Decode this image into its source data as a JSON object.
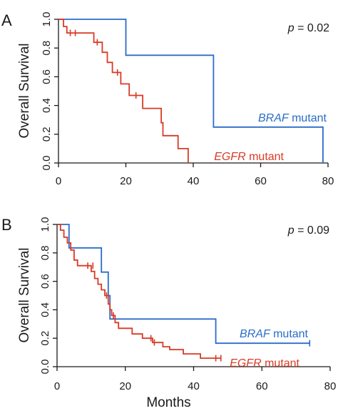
{
  "colors": {
    "braf": "#2a6dc8",
    "egfr": "#d93a26",
    "axis": "#1a1a1a"
  },
  "chart_data": [
    {
      "type": "line",
      "panel": "A",
      "p_value": {
        "italic": "p",
        "rest": " = 0.02"
      },
      "xlabel": "",
      "ylabel": "Overall Survival",
      "xlim": [
        0,
        80
      ],
      "ylim": [
        0,
        1
      ],
      "x_ticks": [
        "0",
        "20",
        "40",
        "60",
        "80"
      ],
      "y_ticks": [
        "0.0",
        "0.2",
        "0.4",
        "0.6",
        "0.8",
        "1.0"
      ],
      "series": [
        {
          "key": "braf",
          "italic": "BRAF",
          "rest": " mutant",
          "steps": [
            [
              0,
              1.0
            ],
            [
              20,
              1.0
            ],
            [
              20,
              0.75
            ],
            [
              46,
              0.75
            ],
            [
              46,
              0.25
            ],
            [
              78.5,
              0.25
            ],
            [
              78.5,
              0.0
            ]
          ],
          "censors": []
        },
        {
          "key": "egfr",
          "italic": "EGFR",
          "rest": " mutant",
          "steps": [
            [
              0,
              1.0
            ],
            [
              1.5,
              1.0
            ],
            [
              1.5,
              0.95
            ],
            [
              2.5,
              0.95
            ],
            [
              2.5,
              0.905
            ],
            [
              10.5,
              0.905
            ],
            [
              10.5,
              0.84
            ],
            [
              13,
              0.84
            ],
            [
              13,
              0.77
            ],
            [
              14.5,
              0.77
            ],
            [
              14.5,
              0.7
            ],
            [
              16,
              0.7
            ],
            [
              16,
              0.63
            ],
            [
              18.5,
              0.63
            ],
            [
              18.5,
              0.55
            ],
            [
              21,
              0.55
            ],
            [
              21,
              0.47
            ],
            [
              25,
              0.47
            ],
            [
              25,
              0.38
            ],
            [
              30.5,
              0.38
            ],
            [
              30.5,
              0.28
            ],
            [
              31,
              0.28
            ],
            [
              31,
              0.19
            ],
            [
              35.5,
              0.19
            ],
            [
              35.5,
              0.1
            ],
            [
              38.5,
              0.1
            ],
            [
              38.5,
              0.0
            ]
          ],
          "censors": [
            [
              3.5,
              0.905
            ],
            [
              5,
              0.905
            ],
            [
              11.5,
              0.84
            ],
            [
              17.5,
              0.63
            ],
            [
              23,
              0.47
            ]
          ]
        }
      ]
    },
    {
      "type": "line",
      "panel": "B",
      "p_value": {
        "italic": "p",
        "rest": " = 0.09"
      },
      "xlabel": "Months",
      "ylabel": "Overall Survival",
      "xlim": [
        0,
        80
      ],
      "ylim": [
        0,
        1
      ],
      "x_ticks": [
        "0",
        "20",
        "40",
        "60",
        "80"
      ],
      "y_ticks": [
        "0.0",
        "0.2",
        "0.4",
        "0.6",
        "0.8",
        "1.0"
      ],
      "series": [
        {
          "key": "braf",
          "italic": "BRAF",
          "rest": " mutant",
          "steps": [
            [
              0,
              1.0
            ],
            [
              3.5,
              1.0
            ],
            [
              3.5,
              0.835
            ],
            [
              13,
              0.835
            ],
            [
              13,
              0.665
            ],
            [
              15,
              0.665
            ],
            [
              15,
              0.5
            ],
            [
              15.5,
              0.5
            ],
            [
              15.5,
              0.335
            ],
            [
              46.5,
              0.335
            ],
            [
              46.5,
              0.165
            ],
            [
              74,
              0.165
            ]
          ],
          "censors": [
            [
              74,
              0.165
            ]
          ]
        },
        {
          "key": "egfr",
          "italic": "EGFR",
          "rest": " mutant",
          "steps": [
            [
              0,
              1.0
            ],
            [
              1,
              1.0
            ],
            [
              1,
              0.96
            ],
            [
              2,
              0.96
            ],
            [
              2,
              0.91
            ],
            [
              3,
              0.91
            ],
            [
              3,
              0.87
            ],
            [
              4,
              0.87
            ],
            [
              4,
              0.82
            ],
            [
              5,
              0.82
            ],
            [
              5,
              0.75
            ],
            [
              6,
              0.75
            ],
            [
              6,
              0.71
            ],
            [
              10,
              0.71
            ],
            [
              10,
              0.67
            ],
            [
              11,
              0.67
            ],
            [
              11,
              0.62
            ],
            [
              12,
              0.62
            ],
            [
              12,
              0.58
            ],
            [
              13,
              0.58
            ],
            [
              13,
              0.54
            ],
            [
              14,
              0.54
            ],
            [
              14,
              0.5
            ],
            [
              15,
              0.5
            ],
            [
              15,
              0.44
            ],
            [
              15.5,
              0.44
            ],
            [
              15.5,
              0.4
            ],
            [
              16,
              0.4
            ],
            [
              16,
              0.36
            ],
            [
              17,
              0.36
            ],
            [
              17,
              0.31
            ],
            [
              18,
              0.31
            ],
            [
              18,
              0.27
            ],
            [
              22,
              0.27
            ],
            [
              22,
              0.23
            ],
            [
              25,
              0.23
            ],
            [
              25,
              0.2
            ],
            [
              28,
              0.2
            ],
            [
              28,
              0.17
            ],
            [
              31,
              0.17
            ],
            [
              31,
              0.14
            ],
            [
              33,
              0.14
            ],
            [
              33,
              0.12
            ],
            [
              37,
              0.12
            ],
            [
              37,
              0.09
            ],
            [
              42,
              0.09
            ],
            [
              42,
              0.06
            ],
            [
              48,
              0.06
            ]
          ],
          "censors": [
            [
              9,
              0.71
            ],
            [
              10.5,
              0.71
            ],
            [
              14.5,
              0.5
            ],
            [
              16.5,
              0.36
            ],
            [
              27.5,
              0.2
            ],
            [
              28.5,
              0.17
            ],
            [
              46.5,
              0.06
            ],
            [
              48,
              0.06
            ]
          ]
        }
      ]
    }
  ]
}
